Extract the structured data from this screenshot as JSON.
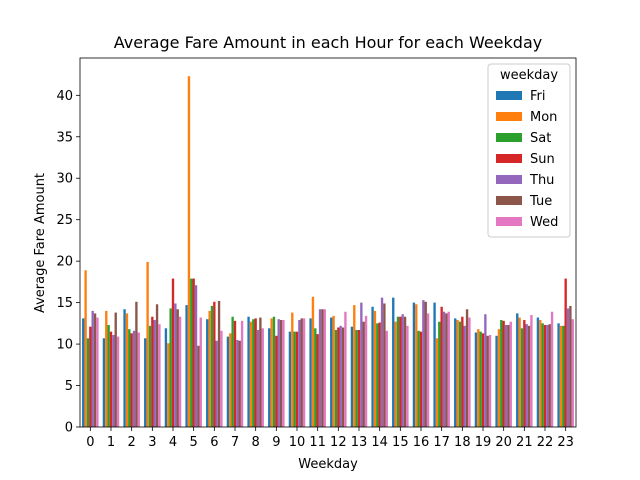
{
  "chart_data": {
    "type": "bar",
    "title": "Average Fare Amount in each Hour for each Weekday",
    "xlabel": "Weekday",
    "ylabel": "Average Fare Amount",
    "ylim": [
      0,
      44.5
    ],
    "yticks": [
      0,
      5,
      10,
      15,
      20,
      25,
      30,
      35,
      40
    ],
    "categories": [
      "0",
      "1",
      "2",
      "3",
      "4",
      "5",
      "6",
      "7",
      "8",
      "9",
      "10",
      "11",
      "12",
      "13",
      "14",
      "15",
      "16",
      "17",
      "18",
      "19",
      "20",
      "21",
      "22",
      "23"
    ],
    "legend": {
      "title": "weekday",
      "placement": "top-right"
    },
    "series": [
      {
        "name": "Fri",
        "color": "#1f77b4",
        "values": [
          13.1,
          10.7,
          14.2,
          10.7,
          11.9,
          14.7,
          13.0,
          10.9,
          13.3,
          11.9,
          11.5,
          13.1,
          13.2,
          12.1,
          14.5,
          15.6,
          15.0,
          15.0,
          13.1,
          11.4,
          11.0,
          13.7,
          13.2,
          12.5
        ]
      },
      {
        "name": "Mon",
        "color": "#ff7f0e",
        "values": [
          18.9,
          14.0,
          13.7,
          19.9,
          10.1,
          42.3,
          14.0,
          11.3,
          12.7,
          13.1,
          13.8,
          15.7,
          13.4,
          14.7,
          14.0,
          12.7,
          14.8,
          10.7,
          12.9,
          11.8,
          11.8,
          13.2,
          12.9,
          12.2
        ]
      },
      {
        "name": "Sat",
        "color": "#2ca02c",
        "values": [
          10.7,
          12.3,
          11.8,
          12.2,
          14.3,
          17.9,
          14.6,
          13.3,
          13.0,
          13.3,
          11.5,
          11.9,
          11.7,
          11.7,
          12.5,
          13.3,
          11.6,
          12.7,
          12.7,
          11.5,
          12.9,
          11.9,
          12.5,
          12.2
        ]
      },
      {
        "name": "Sun",
        "color": "#d62728",
        "values": [
          12.1,
          11.5,
          11.3,
          13.3,
          17.9,
          17.9,
          15.1,
          12.8,
          13.1,
          11.0,
          11.5,
          11.2,
          12.0,
          11.7,
          12.6,
          13.3,
          11.5,
          14.5,
          13.3,
          11.3,
          12.8,
          12.9,
          12.3,
          17.9
        ]
      },
      {
        "name": "Thu",
        "color": "#9467bd",
        "values": [
          14.0,
          11.1,
          11.6,
          12.9,
          14.9,
          17.1,
          10.4,
          10.5,
          11.7,
          13.0,
          12.9,
          14.2,
          12.2,
          15.0,
          15.6,
          13.6,
          15.3,
          13.9,
          12.2,
          13.6,
          12.3,
          12.4,
          12.3,
          14.3
        ]
      },
      {
        "name": "Tue",
        "color": "#8c564b",
        "values": [
          13.7,
          13.8,
          15.1,
          14.8,
          14.2,
          9.8,
          15.2,
          10.4,
          13.2,
          12.9,
          13.1,
          14.2,
          12.0,
          12.7,
          14.9,
          13.3,
          15.1,
          13.7,
          14.2,
          11.0,
          12.3,
          12.2,
          12.4,
          14.6
        ]
      },
      {
        "name": "Wed",
        "color": "#e377c2",
        "values": [
          13.2,
          10.9,
          11.4,
          12.4,
          13.3,
          13.2,
          11.6,
          12.8,
          11.9,
          12.9,
          13.1,
          14.2,
          13.9,
          13.4,
          11.6,
          12.2,
          13.7,
          13.9,
          13.2,
          11.1,
          12.7,
          13.5,
          13.9,
          13.0
        ]
      }
    ]
  }
}
